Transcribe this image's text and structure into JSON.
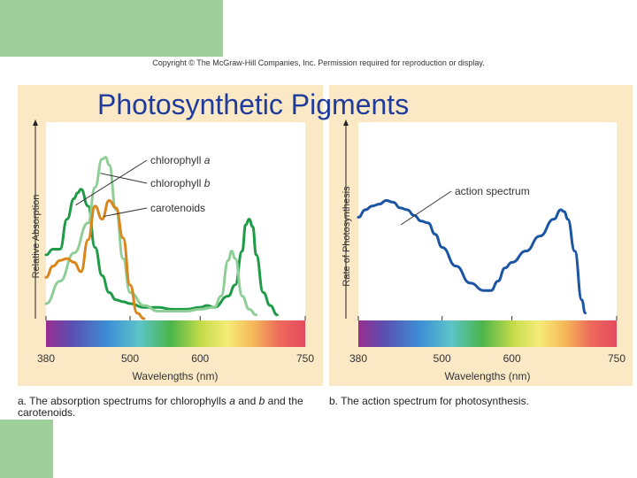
{
  "slide": {
    "title": "Photosynthetic Pigments",
    "copyright": "Copyright © The McGraw-Hill Companies, Inc. Permission required for reproduction or display."
  },
  "captions": {
    "a_prefix": "a. The absorption spectrums for chlorophylls ",
    "a_italic_1": "a",
    "a_mid": " and ",
    "a_italic_2": "b",
    "a_suffix": " and the carotenoids.",
    "b": "b. The action spectrum for photosynthesis."
  },
  "colors": {
    "panel_bg": "#fbe9c6",
    "chlorophyll_a": "#1f9a46",
    "chlorophyll_b": "#8fce96",
    "carotenoids": "#d9861c",
    "action_spectrum": "#1b55a3",
    "deco_green": "#9fcf9a",
    "title_blue": "#1f3c9c"
  },
  "chart_data": [
    {
      "type": "line",
      "ylabel": "Relative Absorption",
      "xlabel": "Wavelengths (nm)",
      "xlim": [
        380,
        750
      ],
      "x_ticks": [
        {
          "value": 380,
          "label": "380"
        },
        {
          "value": 500,
          "label": "500"
        },
        {
          "value": 600,
          "label": "600"
        },
        {
          "value": 750,
          "label": "750"
        }
      ],
      "annotations": [
        {
          "series": 0,
          "base": "chlorophyll ",
          "italic": "a"
        },
        {
          "series": 1,
          "base": "chlorophyll ",
          "italic": "b"
        },
        {
          "series": 2,
          "base": "carotenoids",
          "italic": ""
        }
      ],
      "series": [
        {
          "name": "chlorophyll a",
          "color": "#1f9a46",
          "x": [
            380,
            390,
            400,
            410,
            420,
            425,
            430,
            440,
            450,
            460,
            470,
            480,
            490,
            500,
            520,
            540,
            560,
            580,
            600,
            610,
            620,
            640,
            650,
            660,
            665,
            670,
            675,
            680,
            690,
            700,
            710
          ],
          "y": [
            34,
            37,
            37,
            53,
            64,
            67,
            69,
            60,
            38,
            23,
            14,
            10,
            9,
            8,
            6,
            6,
            5,
            5,
            6,
            7,
            6,
            12,
            18,
            36,
            50,
            53,
            49,
            34,
            14,
            7,
            2
          ]
        },
        {
          "name": "chlorophyll b",
          "color": "#8fce96",
          "x": [
            380,
            400,
            420,
            440,
            450,
            460,
            465,
            470,
            480,
            490,
            500,
            520,
            540,
            560,
            580,
            600,
            620,
            630,
            640,
            645,
            650,
            660,
            670,
            680
          ],
          "y": [
            8,
            20,
            35,
            51,
            70,
            85,
            86,
            82,
            58,
            32,
            14,
            7,
            4,
            4,
            4,
            5,
            6,
            12,
            31,
            36,
            32,
            12,
            5,
            2
          ]
        },
        {
          "name": "carotenoids",
          "color": "#d9861c",
          "x": [
            380,
            390,
            400,
            410,
            420,
            430,
            440,
            450,
            460,
            470,
            480,
            490,
            500,
            510,
            520
          ],
          "y": [
            22,
            28,
            31,
            32,
            30,
            25,
            42,
            60,
            53,
            63,
            59,
            43,
            18,
            3,
            0
          ]
        }
      ]
    },
    {
      "type": "line",
      "ylabel": "Rate of Photosynthesis",
      "xlabel": "Wavelengths (nm)",
      "xlim": [
        380,
        750
      ],
      "x_ticks": [
        {
          "value": 380,
          "label": "380"
        },
        {
          "value": 500,
          "label": "500"
        },
        {
          "value": 600,
          "label": "600"
        },
        {
          "value": 750,
          "label": "750"
        }
      ],
      "annotations": [
        {
          "series": 0,
          "base": "action spectrum",
          "italic": ""
        }
      ],
      "series": [
        {
          "name": "action spectrum",
          "color": "#1b55a3",
          "x": [
            380,
            390,
            400,
            410,
            420,
            430,
            440,
            450,
            460,
            470,
            480,
            490,
            500,
            520,
            540,
            560,
            570,
            580,
            590,
            600,
            620,
            640,
            660,
            670,
            675,
            680,
            690,
            700,
            705
          ],
          "y": [
            54,
            58,
            60,
            61,
            63,
            62,
            59,
            58,
            55,
            52,
            51,
            45,
            38,
            28,
            19,
            15,
            15,
            20,
            27,
            30,
            36,
            44,
            53,
            58,
            57,
            53,
            36,
            10,
            3
          ]
        }
      ]
    }
  ]
}
